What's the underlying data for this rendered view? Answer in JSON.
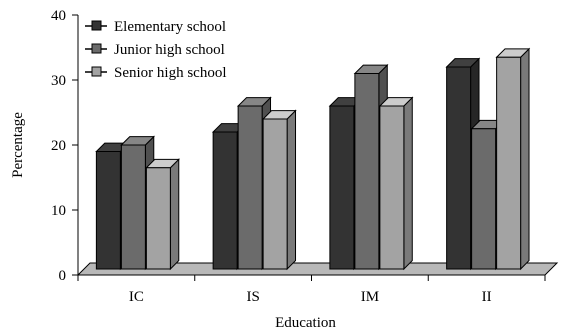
{
  "chart_data": {
    "type": "bar",
    "title": "",
    "xlabel": "Education",
    "ylabel": "Percentage",
    "ylim": [
      0,
      40
    ],
    "yticks": [
      0,
      10,
      20,
      30,
      40
    ],
    "categories": [
      "IC",
      "IS",
      "IM",
      "II"
    ],
    "series": [
      {
        "name": "Elementary school",
        "values": [
          19,
          22,
          26,
          32
        ],
        "color": "#333333"
      },
      {
        "name": "Junior high school",
        "values": [
          20,
          26,
          31,
          22.5
        ],
        "color": "#6b6b6b"
      },
      {
        "name": "Senior high school",
        "values": [
          16.5,
          24,
          26,
          33.5
        ],
        "color": "#a3a3a3"
      }
    ],
    "legend_position": "top-left",
    "grid": false,
    "style": "3d-bar"
  }
}
